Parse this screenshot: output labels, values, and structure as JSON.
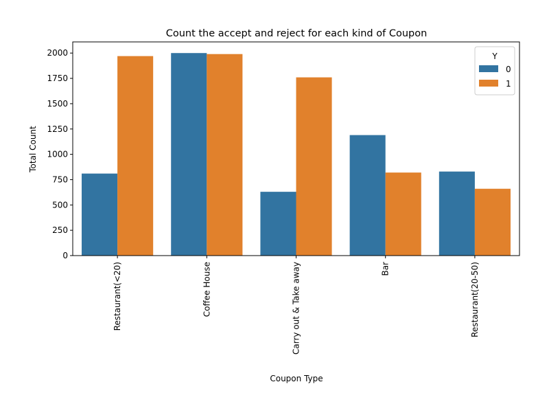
{
  "chart_data": {
    "type": "bar",
    "title": "Count the accept and reject for each kind of Coupon",
    "xlabel": "Coupon Type",
    "ylabel": "Total Count",
    "categories": [
      "Restaurant(<20)",
      "Coffee House",
      "Carry out & Take away",
      "Bar",
      "Restaurant(20-50)"
    ],
    "series": [
      {
        "name": "0",
        "values": [
          810,
          2000,
          630,
          1190,
          830
        ],
        "color": "#3274a1"
      },
      {
        "name": "1",
        "values": [
          1970,
          1990,
          1760,
          820,
          660
        ],
        "color": "#e1812c"
      }
    ],
    "ylim": [
      0,
      2110
    ],
    "yticks": [
      0,
      250,
      500,
      750,
      1000,
      1250,
      1500,
      1750,
      2000
    ],
    "grid": false,
    "legend": {
      "title": "Y",
      "placement": "top-right"
    }
  }
}
